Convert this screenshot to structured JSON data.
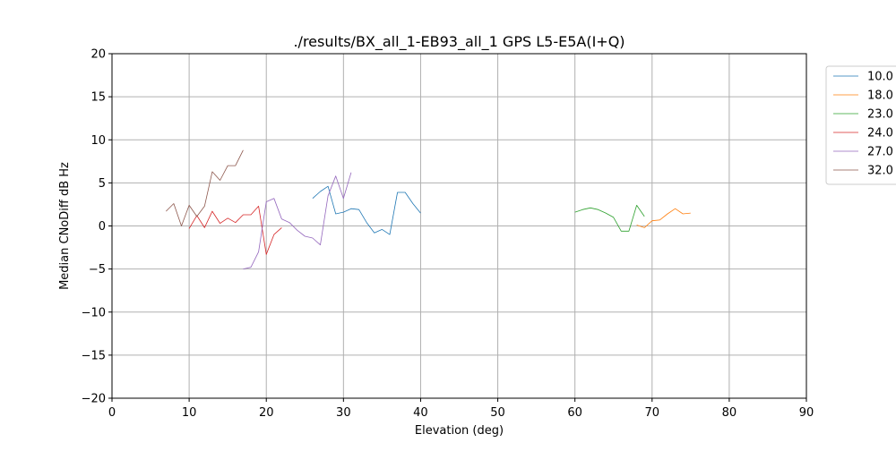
{
  "chart_data": {
    "type": "line",
    "title": "./results/BX_all_1-EB93_all_1 GPS L5-E5A(I+Q)",
    "xlabel": "Elevation (deg)",
    "ylabel": "Median CNoDiff dB Hz",
    "xlim": [
      0,
      90
    ],
    "ylim": [
      -20,
      20
    ],
    "xticks": [
      "0",
      "10",
      "20",
      "30",
      "40",
      "50",
      "60",
      "70",
      "80",
      "90"
    ],
    "yticks": [
      "20",
      "15",
      "10",
      "5",
      "0",
      "−5",
      "−10",
      "−15",
      "−20"
    ],
    "grid": true,
    "legend_position": "outside-top-right",
    "series": [
      {
        "name": "10.0",
        "color": "#1f77b4",
        "x": [
          26,
          27,
          28,
          29,
          30,
          31,
          32,
          33,
          34,
          35,
          36,
          37,
          38,
          39,
          40
        ],
        "y": [
          3.2,
          4.0,
          4.6,
          1.4,
          1.6,
          2.0,
          1.9,
          0.4,
          -0.8,
          -0.4,
          -1.0,
          3.9,
          3.9,
          2.6,
          1.5
        ]
      },
      {
        "name": "18.0",
        "color": "#ff7f0e",
        "x": [
          68,
          69,
          70,
          71,
          72,
          73,
          74,
          75
        ],
        "y": [
          0.1,
          -0.2,
          0.6,
          0.7,
          1.4,
          2.0,
          1.4,
          1.5
        ]
      },
      {
        "name": "23.0",
        "color": "#2ca02c",
        "x": [
          60,
          61,
          62,
          63,
          64,
          65,
          66,
          67,
          68,
          69
        ],
        "y": [
          1.6,
          1.9,
          2.1,
          1.9,
          1.5,
          1.0,
          -0.6,
          -0.6,
          2.4,
          1.1
        ]
      },
      {
        "name": "24.0",
        "color": "#d62728",
        "x": [
          10,
          11,
          12,
          13,
          14,
          15,
          16,
          17,
          18,
          19,
          20,
          21,
          22
        ],
        "y": [
          -0.3,
          1.2,
          -0.2,
          1.7,
          0.3,
          0.9,
          0.4,
          1.3,
          1.3,
          2.3,
          -3.3,
          -1.0,
          -0.2
        ]
      },
      {
        "name": "27.0",
        "color": "#9467bd",
        "x": [
          17,
          18,
          19,
          20,
          21,
          22,
          23,
          24,
          25,
          26,
          27,
          28,
          29,
          30,
          31
        ],
        "y": [
          -5.0,
          -4.8,
          -3.0,
          2.8,
          3.2,
          0.8,
          0.4,
          -0.5,
          -1.2,
          -1.4,
          -2.2,
          3.5,
          5.8,
          3.2,
          6.2
        ]
      },
      {
        "name": "32.0",
        "color": "#8c564b",
        "x": [
          7,
          8,
          9,
          10,
          11,
          12,
          13,
          14,
          15,
          16,
          17
        ],
        "y": [
          1.7,
          2.6,
          0.0,
          2.4,
          1.1,
          2.3,
          6.3,
          5.3,
          7.0,
          7.0,
          8.8
        ]
      }
    ]
  }
}
